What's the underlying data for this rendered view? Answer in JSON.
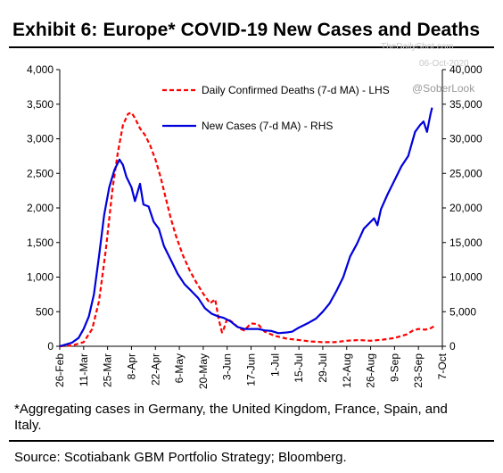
{
  "header": {
    "title": "Exhibit 6: Europe* COVID-19 New Cases and Deaths"
  },
  "watermark": {
    "site": "TheDailyShot.com",
    "date": "06-Oct-2020",
    "handle": "@SoberLook"
  },
  "footnote": "*Aggregating cases in Germany, the United Kingdom, France, Spain, and Italy.",
  "source": "Source: Scotiabank GBM Portfolio Strategy; Bloomberg.",
  "chart_data": {
    "type": "line",
    "title": "Exhibit 6: Europe* COVID-19 New Cases and Deaths",
    "x_ticks": [
      "26-Feb",
      "11-Mar",
      "25-Mar",
      "8-Apr",
      "22-Apr",
      "6-May",
      "20-May",
      "3-Jun",
      "17-Jun",
      "1-Jul",
      "15-Jul",
      "29-Jul",
      "12-Aug",
      "26-Aug",
      "9-Sep",
      "23-Sep",
      "7-Oct"
    ],
    "x_range": [
      "26-Feb",
      "7-Oct"
    ],
    "y_left": {
      "range": [
        0,
        4000
      ],
      "ticks": [
        "0",
        "500",
        "1,000",
        "1,500",
        "2,000",
        "2,500",
        "3,000",
        "3,500",
        "4,000"
      ]
    },
    "y_right": {
      "range": [
        0,
        40000
      ],
      "ticks": [
        "0",
        "5,000",
        "10,000",
        "15,000",
        "20,000",
        "25,000",
        "30,000",
        "35,000",
        "40,000"
      ]
    },
    "grid": false,
    "legend_position": "top-center",
    "series": [
      {
        "name": "Daily Confirmed Deaths (7-d MA) - LHS",
        "axis": "left",
        "color": "#ff0000",
        "dash": true,
        "points": [
          [
            "26-Feb",
            0
          ],
          [
            "4-Mar",
            10
          ],
          [
            "11-Mar",
            60
          ],
          [
            "16-Mar",
            250
          ],
          [
            "20-Mar",
            650
          ],
          [
            "24-Mar",
            1400
          ],
          [
            "28-Mar",
            2300
          ],
          [
            "31-Mar",
            2800
          ],
          [
            "3-Apr",
            3200
          ],
          [
            "6-Apr",
            3360
          ],
          [
            "8-Apr",
            3380
          ],
          [
            "10-Apr",
            3300
          ],
          [
            "13-Apr",
            3150
          ],
          [
            "16-Apr",
            3050
          ],
          [
            "19-Apr",
            2900
          ],
          [
            "22-Apr",
            2700
          ],
          [
            "25-Apr",
            2450
          ],
          [
            "28-Apr",
            2150
          ],
          [
            "1-May",
            1850
          ],
          [
            "4-May",
            1600
          ],
          [
            "8-May",
            1320
          ],
          [
            "12-May",
            1100
          ],
          [
            "16-May",
            920
          ],
          [
            "20-May",
            760
          ],
          [
            "24-May",
            620
          ],
          [
            "27-May",
            680
          ],
          [
            "29-May",
            400
          ],
          [
            "31-May",
            200
          ],
          [
            "1-Jun",
            250
          ],
          [
            "3-Jun",
            400
          ],
          [
            "6-Jun",
            350
          ],
          [
            "10-Jun",
            260
          ],
          [
            "13-Jun",
            230
          ],
          [
            "17-Jun",
            330
          ],
          [
            "21-Jun",
            320
          ],
          [
            "25-Jun",
            210
          ],
          [
            "1-Jul",
            150
          ],
          [
            "8-Jul",
            110
          ],
          [
            "15-Jul",
            90
          ],
          [
            "22-Jul",
            70
          ],
          [
            "29-Jul",
            60
          ],
          [
            "5-Aug",
            60
          ],
          [
            "12-Aug",
            80
          ],
          [
            "19-Aug",
            90
          ],
          [
            "26-Aug",
            80
          ],
          [
            "2-Sep",
            95
          ],
          [
            "9-Sep",
            120
          ],
          [
            "16-Sep",
            170
          ],
          [
            "20-Sep",
            230
          ],
          [
            "23-Sep",
            250
          ],
          [
            "27-Sep",
            240
          ],
          [
            "30-Sep",
            260
          ],
          [
            "3-Oct",
            300
          ]
        ]
      },
      {
        "name": "New Cases (7-d MA) - RHS",
        "axis": "right",
        "color": "#0000dd",
        "dash": false,
        "points": [
          [
            "26-Feb",
            0
          ],
          [
            "4-Mar",
            500
          ],
          [
            "8-Mar",
            1200
          ],
          [
            "11-Mar",
            2500
          ],
          [
            "14-Mar",
            4300
          ],
          [
            "17-Mar",
            7500
          ],
          [
            "20-Mar",
            13000
          ],
          [
            "23-Mar",
            19000
          ],
          [
            "26-Mar",
            23000
          ],
          [
            "29-Mar",
            25500
          ],
          [
            "31-Mar",
            26500
          ],
          [
            "1-Apr",
            27000
          ],
          [
            "3-Apr",
            26200
          ],
          [
            "5-Apr",
            24500
          ],
          [
            "8-Apr",
            23000
          ],
          [
            "10-Apr",
            21000
          ],
          [
            "13-Apr",
            23500
          ],
          [
            "15-Apr",
            20500
          ],
          [
            "18-Apr",
            20200
          ],
          [
            "21-Apr",
            18000
          ],
          [
            "24-Apr",
            17000
          ],
          [
            "27-Apr",
            14500
          ],
          [
            "1-May",
            12500
          ],
          [
            "5-May",
            10500
          ],
          [
            "9-May",
            9000
          ],
          [
            "13-May",
            8000
          ],
          [
            "17-May",
            7000
          ],
          [
            "21-May",
            5500
          ],
          [
            "25-May",
            4700
          ],
          [
            "29-May",
            4300
          ],
          [
            "1-Jun",
            4100
          ],
          [
            "5-Jun",
            3600
          ],
          [
            "9-Jun",
            2800
          ],
          [
            "13-Jun",
            2500
          ],
          [
            "17-Jun",
            2500
          ],
          [
            "21-Jun",
            2500
          ],
          [
            "25-Jun",
            2300
          ],
          [
            "29-Jun",
            2200
          ],
          [
            "3-Jul",
            1900
          ],
          [
            "8-Jul",
            2000
          ],
          [
            "11-Jul",
            2100
          ],
          [
            "15-Jul",
            2700
          ],
          [
            "20-Jul",
            3300
          ],
          [
            "25-Jul",
            4000
          ],
          [
            "29-Jul",
            5000
          ],
          [
            "2-Aug",
            6200
          ],
          [
            "6-Aug",
            8000
          ],
          [
            "10-Aug",
            10000
          ],
          [
            "14-Aug",
            13000
          ],
          [
            "18-Aug",
            14800
          ],
          [
            "22-Aug",
            17000
          ],
          [
            "26-Aug",
            18000
          ],
          [
            "28-Aug",
            18500
          ],
          [
            "30-Aug",
            17500
          ],
          [
            "1-Sep",
            19800
          ],
          [
            "5-Sep",
            22000
          ],
          [
            "9-Sep",
            24000
          ],
          [
            "13-Sep",
            26000
          ],
          [
            "17-Sep",
            27500
          ],
          [
            "21-Sep",
            31000
          ],
          [
            "24-Sep",
            32000
          ],
          [
            "26-Sep",
            32500
          ],
          [
            "28-Sep",
            31000
          ],
          [
            "30-Sep",
            33500
          ],
          [
            "1-Oct",
            34500
          ]
        ]
      }
    ]
  }
}
